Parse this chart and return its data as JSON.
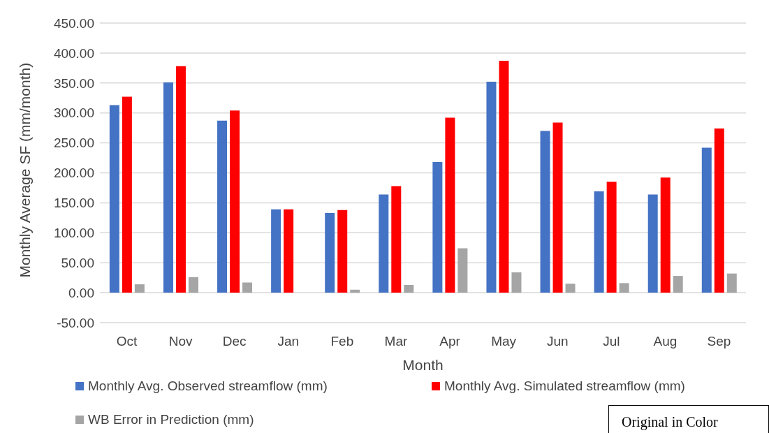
{
  "chart_data": {
    "type": "bar",
    "xlabel": "Month",
    "ylabel": "Monthly Average SF (mm/month)",
    "categories": [
      "Oct",
      "Nov",
      "Dec",
      "Jan",
      "Feb",
      "Mar",
      "Apr",
      "May",
      "Jun",
      "Jul",
      "Aug",
      "Sep"
    ],
    "series": [
      {
        "name": "Monthly Avg. Observed streamflow (mm)",
        "color": "#4472c4",
        "values": [
          313,
          351,
          287,
          139,
          133,
          164,
          218,
          352,
          270,
          169,
          164,
          242
        ]
      },
      {
        "name": "Monthly Avg. Simulated streamflow (mm)",
        "color": "#ff0000",
        "values": [
          327,
          378,
          304,
          139,
          138,
          178,
          292,
          387,
          284,
          185,
          192,
          274
        ]
      },
      {
        "name": "WB Error in Prediction (mm)",
        "color": "#a5a5a5",
        "values": [
          14,
          26,
          17,
          0,
          5,
          13,
          74,
          34,
          15,
          16,
          28,
          32
        ]
      }
    ],
    "ylim": [
      -50,
      450
    ],
    "yticks": [
      {
        "value": -50,
        "label": "-50.00"
      },
      {
        "value": 0,
        "label": "0.00"
      },
      {
        "value": 50,
        "label": "50.00"
      },
      {
        "value": 100,
        "label": "100.00"
      },
      {
        "value": 150,
        "label": "150.00"
      },
      {
        "value": 200,
        "label": "200.00"
      },
      {
        "value": 250,
        "label": "250.00"
      },
      {
        "value": 300,
        "label": "300.00"
      },
      {
        "value": 350,
        "label": "350.00"
      },
      {
        "value": 400,
        "label": "400.00"
      },
      {
        "value": 450,
        "label": "450.00"
      }
    ],
    "grid": "y",
    "legend": "bottom",
    "annotations": [
      "Original in Color"
    ]
  }
}
